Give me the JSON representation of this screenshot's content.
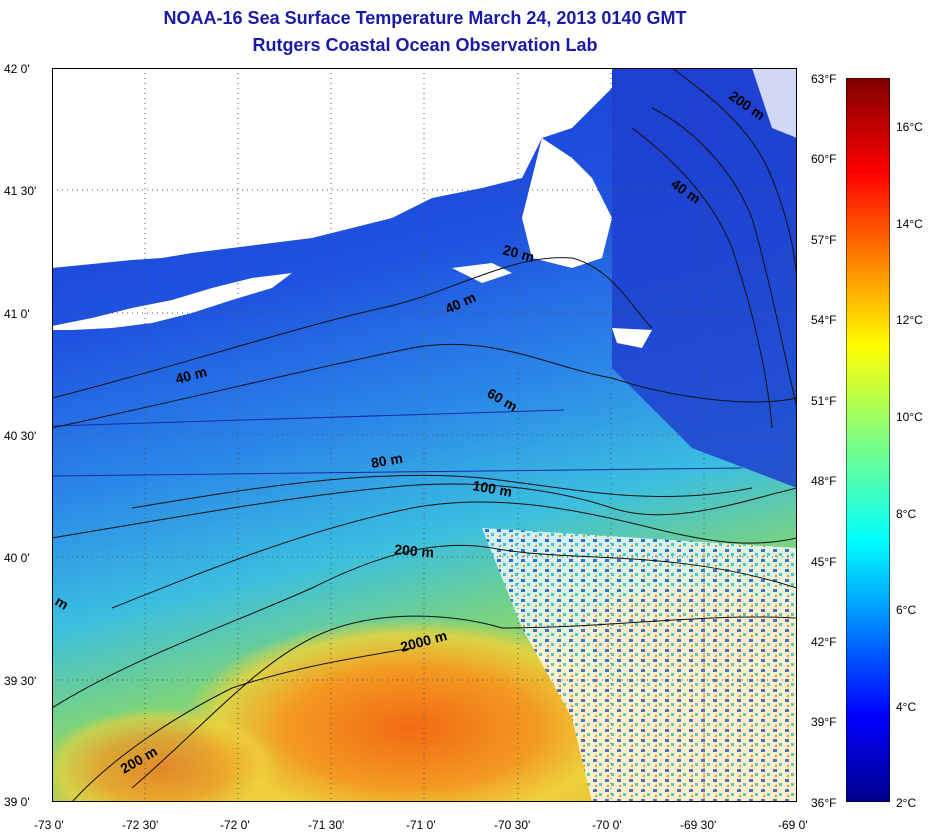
{
  "title": "NOAA-16 Sea Surface Temperature March 24, 2013 0140 GMT",
  "subtitle": "Rutgers Coastal Ocean Observation Lab",
  "lat_labels": [
    "42 0'",
    "41 30'",
    "41 0'",
    "40 30'",
    "40 0'",
    "39 30'",
    "39 0'"
  ],
  "lon_labels": [
    "-73 0'",
    "-72 30'",
    "-72 0'",
    "-71 30'",
    "-71 0'",
    "-70 30'",
    "-70 0'",
    "-69 30'",
    "-69 0'"
  ],
  "fahrenheit_labels": [
    "63°F",
    "60°F",
    "57°F",
    "54°F",
    "51°F",
    "48°F",
    "45°F",
    "42°F",
    "39°F",
    "36°F"
  ],
  "celsius_labels": [
    "16°C",
    "14°C",
    "12°C",
    "10°C",
    "8°C",
    "6°C",
    "4°C",
    "2°C"
  ],
  "contour_labels": [
    "200 m",
    "40 m",
    "20 m",
    "40 m",
    "40 m",
    "60 m",
    "80 m",
    "100 m",
    "200 m",
    "2000 m",
    "200 m",
    "m"
  ],
  "colors": {
    "title": "#1a1aa6",
    "land": "#ffffff",
    "deep_blue": "#1f3fd8",
    "mid_blue": "#2f7fe6",
    "cyan": "#38c4e0",
    "green": "#7fd27a",
    "yellow": "#f2d23a",
    "orange": "#f07a1e"
  }
}
